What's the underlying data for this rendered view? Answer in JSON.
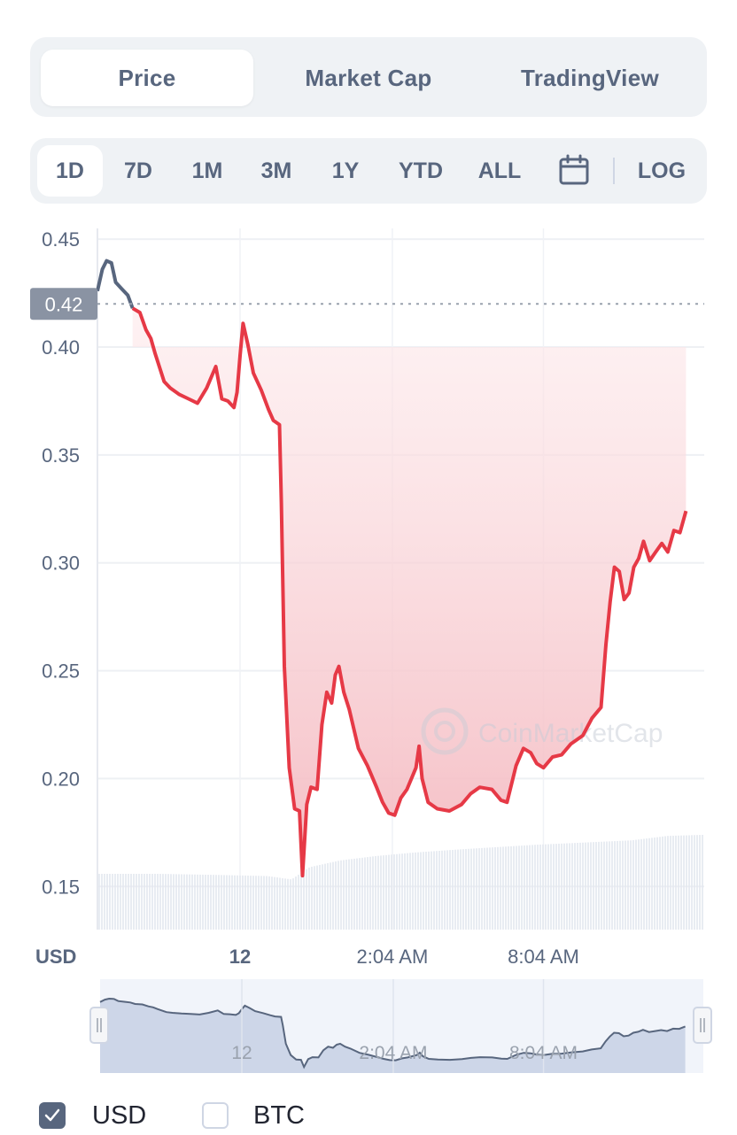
{
  "tabs": {
    "price": "Price",
    "market_cap": "Market Cap",
    "tradingview": "TradingView"
  },
  "ranges": {
    "d1": "1D",
    "d7": "7D",
    "m1": "1M",
    "m3": "3M",
    "y1": "1Y",
    "ytd": "YTD",
    "all": "ALL",
    "log": "LOG"
  },
  "icons": {
    "calendar": "calendar-icon",
    "check": "check-icon",
    "handle": "drag-handle-icon"
  },
  "colors": {
    "line": "#e63946",
    "line_pre": "#58667e",
    "fill": "#f4b9c0",
    "volume": "#e3e7ef",
    "navigator_fill": "#cdd6e8",
    "label_bg": "#8a93a3",
    "panel_bg": "#eff2f5"
  },
  "chart_data": {
    "type": "line",
    "ylim": [
      0.13,
      0.455
    ],
    "y_ticks": [
      "0.45",
      "0.40",
      "0.35",
      "0.30",
      "0.25",
      "0.20",
      "0.15"
    ],
    "y_tick_values": [
      0.45,
      0.4,
      0.35,
      0.3,
      0.25,
      0.2,
      0.15
    ],
    "current_value": 0.42,
    "current_label": "0.42",
    "x_unit_label": "USD",
    "x_ticks": [
      "12",
      "2:04 AM",
      "8:04 AM"
    ],
    "x_tick_t": [
      0.235,
      0.486,
      0.735
    ],
    "watermark": "CoinMarketCap",
    "series": [
      {
        "values": [
          [
            0.0,
            0.426
          ],
          [
            0.008,
            0.436
          ],
          [
            0.015,
            0.44
          ],
          [
            0.023,
            0.439
          ],
          [
            0.03,
            0.43
          ],
          [
            0.04,
            0.427
          ],
          [
            0.05,
            0.424
          ],
          [
            0.058,
            0.418
          ],
          [
            0.07,
            0.416
          ],
          [
            0.08,
            0.408
          ],
          [
            0.088,
            0.404
          ],
          [
            0.095,
            0.397
          ],
          [
            0.11,
            0.384
          ],
          [
            0.12,
            0.381
          ],
          [
            0.135,
            0.378
          ],
          [
            0.15,
            0.376
          ],
          [
            0.165,
            0.374
          ],
          [
            0.18,
            0.381
          ],
          [
            0.195,
            0.391
          ],
          [
            0.205,
            0.376
          ],
          [
            0.215,
            0.375
          ],
          [
            0.225,
            0.372
          ],
          [
            0.23,
            0.379
          ],
          [
            0.235,
            0.396
          ],
          [
            0.24,
            0.411
          ],
          [
            0.248,
            0.401
          ],
          [
            0.257,
            0.388
          ],
          [
            0.27,
            0.38
          ],
          [
            0.282,
            0.371
          ],
          [
            0.29,
            0.366
          ],
          [
            0.3,
            0.364
          ],
          [
            0.303,
            0.328
          ],
          [
            0.308,
            0.252
          ],
          [
            0.316,
            0.205
          ],
          [
            0.325,
            0.186
          ],
          [
            0.333,
            0.185
          ],
          [
            0.338,
            0.155
          ],
          [
            0.345,
            0.188
          ],
          [
            0.352,
            0.196
          ],
          [
            0.362,
            0.195
          ],
          [
            0.37,
            0.225
          ],
          [
            0.378,
            0.24
          ],
          [
            0.386,
            0.235
          ],
          [
            0.392,
            0.248
          ],
          [
            0.398,
            0.252
          ],
          [
            0.406,
            0.24
          ],
          [
            0.415,
            0.232
          ],
          [
            0.43,
            0.214
          ],
          [
            0.445,
            0.206
          ],
          [
            0.46,
            0.196
          ],
          [
            0.47,
            0.189
          ],
          [
            0.48,
            0.184
          ],
          [
            0.49,
            0.183
          ],
          [
            0.5,
            0.191
          ],
          [
            0.51,
            0.195
          ],
          [
            0.525,
            0.205
          ],
          [
            0.53,
            0.215
          ],
          [
            0.535,
            0.2
          ],
          [
            0.545,
            0.189
          ],
          [
            0.56,
            0.186
          ],
          [
            0.58,
            0.185
          ],
          [
            0.6,
            0.188
          ],
          [
            0.615,
            0.193
          ],
          [
            0.63,
            0.196
          ],
          [
            0.65,
            0.195
          ],
          [
            0.665,
            0.19
          ],
          [
            0.675,
            0.189
          ],
          [
            0.69,
            0.206
          ],
          [
            0.702,
            0.214
          ],
          [
            0.714,
            0.212
          ],
          [
            0.724,
            0.207
          ],
          [
            0.735,
            0.205
          ],
          [
            0.75,
            0.21
          ],
          [
            0.765,
            0.211
          ],
          [
            0.78,
            0.216
          ],
          [
            0.8,
            0.22
          ],
          [
            0.815,
            0.228
          ],
          [
            0.83,
            0.233
          ],
          [
            0.838,
            0.262
          ],
          [
            0.845,
            0.282
          ],
          [
            0.852,
            0.298
          ],
          [
            0.86,
            0.296
          ],
          [
            0.868,
            0.283
          ],
          [
            0.876,
            0.286
          ],
          [
            0.884,
            0.298
          ],
          [
            0.892,
            0.302
          ],
          [
            0.9,
            0.31
          ],
          [
            0.91,
            0.301
          ],
          [
            0.92,
            0.305
          ],
          [
            0.93,
            0.309
          ],
          [
            0.94,
            0.305
          ],
          [
            0.95,
            0.315
          ],
          [
            0.96,
            0.314
          ],
          [
            0.97,
            0.324
          ]
        ]
      }
    ],
    "pre_segment_end": 0.065,
    "volume": [
      [
        0.0,
        0.5
      ],
      [
        0.1,
        0.5
      ],
      [
        0.2,
        0.49
      ],
      [
        0.28,
        0.48
      ],
      [
        0.32,
        0.45
      ],
      [
        0.35,
        0.56
      ],
      [
        0.4,
        0.62
      ],
      [
        0.46,
        0.66
      ],
      [
        0.52,
        0.69
      ],
      [
        0.6,
        0.72
      ],
      [
        0.66,
        0.74
      ],
      [
        0.72,
        0.76
      ],
      [
        0.8,
        0.78
      ],
      [
        0.88,
        0.8
      ],
      [
        0.94,
        0.84
      ],
      [
        1.0,
        0.85
      ]
    ],
    "navigator_ticks": [
      "12",
      "2:04 AM",
      "8:04 AM"
    ]
  },
  "legend": {
    "usd": "USD",
    "btc": "BTC",
    "usd_checked": true,
    "btc_checked": false
  }
}
